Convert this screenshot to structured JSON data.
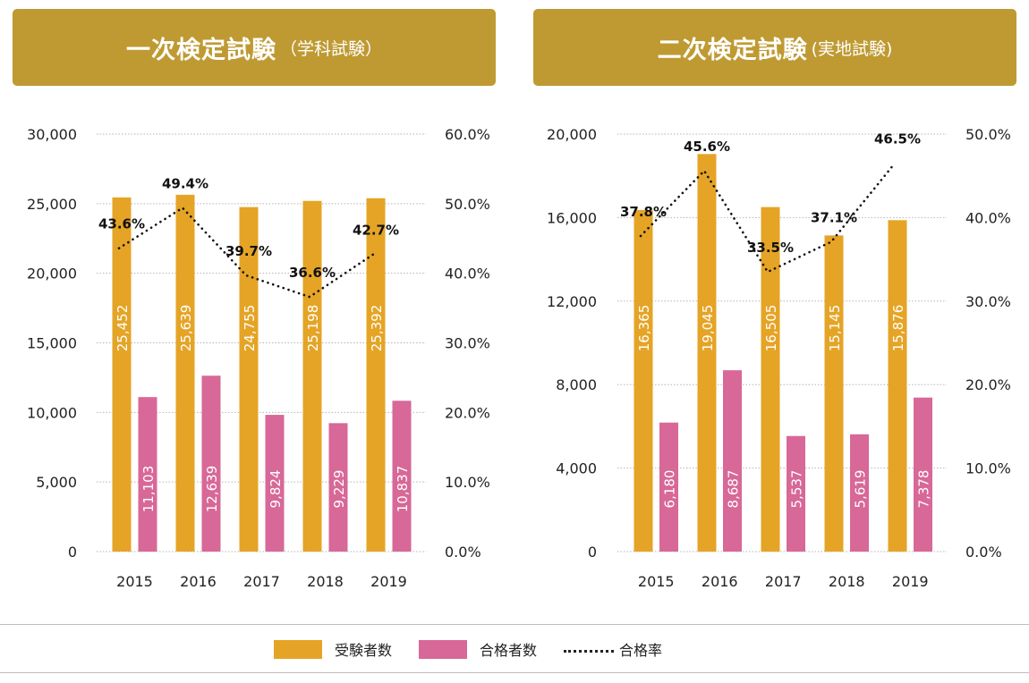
{
  "banners": [
    {
      "main": "一次検定試験",
      "sub": "（学科試験）"
    },
    {
      "main": "二次検定試験",
      "sub": "(実地試験)"
    }
  ],
  "legend": [
    {
      "label": "受験者数",
      "type": "bar",
      "color": "#e5a426"
    },
    {
      "label": "合格者数",
      "type": "bar",
      "color": "#d76897"
    },
    {
      "label": "合格率",
      "type": "line-dotted",
      "color": "#222222"
    }
  ],
  "chart_data": [
    {
      "type": "bar",
      "title": "一次検定試験（学科試験）",
      "categories": [
        "2015",
        "2016",
        "2017",
        "2018",
        "2019"
      ],
      "series": [
        {
          "name": "受験者数",
          "type": "bar",
          "axis": "left",
          "color": "#e5a426",
          "values": [
            25452,
            25639,
            24755,
            25198,
            25392
          ],
          "labels": [
            "25,452",
            "25,639",
            "24,755",
            "25,198",
            "25,392"
          ]
        },
        {
          "name": "合格者数",
          "type": "bar",
          "axis": "left",
          "color": "#d76897",
          "values": [
            11103,
            12639,
            9824,
            9229,
            10837
          ],
          "labels": [
            "11,103",
            "12,639",
            "9,824",
            "9,229",
            "10,837"
          ]
        },
        {
          "name": "合格率",
          "type": "line",
          "axis": "right",
          "style": "dotted",
          "values": [
            43.6,
            49.4,
            39.7,
            36.6,
            42.7
          ],
          "labels": [
            "43.6%",
            "49.4%",
            "39.7%",
            "36.6%",
            "42.7%"
          ]
        }
      ],
      "ylim": [
        0,
        30000
      ],
      "yticks": [
        "0",
        "5,000",
        "10,000",
        "15,000",
        "20,000",
        "25,000",
        "30,000"
      ],
      "y2lim": [
        0,
        60
      ],
      "y2ticks": [
        "0.0%",
        "10.0%",
        "20.0%",
        "30.0%",
        "40.0%",
        "50.0%",
        "60.0%"
      ],
      "grid": true
    },
    {
      "type": "bar",
      "title": "二次検定試験(実地試験)",
      "categories": [
        "2015",
        "2016",
        "2017",
        "2018",
        "2019"
      ],
      "series": [
        {
          "name": "受験者数",
          "type": "bar",
          "axis": "left",
          "color": "#e5a426",
          "values": [
            16365,
            19045,
            16505,
            15145,
            15876
          ],
          "labels": [
            "16,365",
            "19,045",
            "16,505",
            "15,145",
            "15,876"
          ]
        },
        {
          "name": "合格者数",
          "type": "bar",
          "axis": "left",
          "color": "#d76897",
          "values": [
            6180,
            8687,
            5537,
            5619,
            7378
          ],
          "labels": [
            "6,180",
            "8,687",
            "5,537",
            "5,619",
            "7,378"
          ]
        },
        {
          "name": "合格率",
          "type": "line",
          "axis": "right",
          "style": "dotted",
          "values": [
            37.8,
            45.6,
            33.5,
            37.1,
            46.5
          ],
          "labels": [
            "37.8%",
            "45.6%",
            "33.5%",
            "37.1%",
            "46.5%"
          ]
        }
      ],
      "ylim": [
        0,
        20000
      ],
      "yticks": [
        "0",
        "4,000",
        "8,000",
        "12,000",
        "16,000",
        "20,000"
      ],
      "y2lim": [
        0,
        50
      ],
      "y2ticks": [
        "0.0%",
        "10.0%",
        "20.0%",
        "30.0%",
        "40.0%",
        "50.0%"
      ],
      "grid": true
    }
  ]
}
